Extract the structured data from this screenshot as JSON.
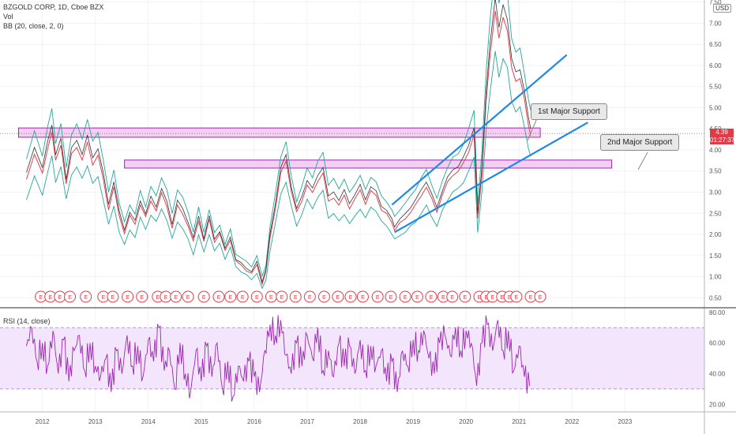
{
  "header": {
    "symbol_line": "BZGOLD CORP, 1D, Cboe BZX",
    "volume_label": "Vol",
    "bb_label": "BB (20, close, 2, 0)",
    "currency": "USD"
  },
  "price_readout": {
    "last_price": "4.39",
    "countdown": "01:27:37"
  },
  "annotations": {
    "support_1": "1st Major Support",
    "support_2": "2nd Major Support"
  },
  "earnings_marker_label": "E",
  "earnings_dates": [
    2011.97,
    2012.15,
    2012.33,
    2012.52,
    2012.82,
    2013.15,
    2013.33,
    2013.61,
    2013.88,
    2014.18,
    2014.33,
    2014.52,
    2014.75,
    2015.05,
    2015.33,
    2015.55,
    2015.78,
    2016.05,
    2016.32,
    2016.52,
    2016.78,
    2017.05,
    2017.32,
    2017.58,
    2017.82,
    2018.05,
    2018.33,
    2018.58,
    2018.85,
    2019.08,
    2019.34,
    2019.57,
    2019.74,
    2019.98,
    2020.25,
    2020.38,
    2020.5,
    2020.68,
    2020.82,
    2020.95,
    2021.22,
    2021.4
  ],
  "chart_data": [
    {
      "type": "line",
      "name": "price",
      "title": "",
      "x_ticks": [
        "2012",
        "2013",
        "2014",
        "2015",
        "2016",
        "2017",
        "2018",
        "2019",
        "2020",
        "2021",
        "2022",
        "2023"
      ],
      "y_ticks": [
        0.5,
        1.0,
        1.5,
        2.0,
        2.5,
        3.0,
        3.5,
        4.0,
        4.5,
        5.0,
        5.5,
        6.0,
        6.5,
        7.0,
        7.5
      ],
      "ylim": [
        0.3,
        7.55
      ],
      "xlim": [
        2011.2,
        2024.5
      ],
      "series": [
        {
          "values": [
            [
              2011.7,
              3.3
            ],
            [
              2011.85,
              3.9
            ],
            [
              2012.0,
              3.4
            ],
            [
              2012.1,
              4.0
            ],
            [
              2012.18,
              4.4
            ],
            [
              2012.25,
              3.7
            ],
            [
              2012.35,
              4.1
            ],
            [
              2012.45,
              3.2
            ],
            [
              2012.55,
              3.9
            ],
            [
              2012.65,
              4.1
            ],
            [
              2012.75,
              3.8
            ],
            [
              2012.85,
              4.2
            ],
            [
              2012.95,
              3.7
            ],
            [
              2013.05,
              3.9
            ],
            [
              2013.15,
              3.3
            ],
            [
              2013.25,
              2.6
            ],
            [
              2013.35,
              3.1
            ],
            [
              2013.45,
              2.4
            ],
            [
              2013.55,
              2.0
            ],
            [
              2013.65,
              2.4
            ],
            [
              2013.75,
              2.2
            ],
            [
              2013.85,
              2.7
            ],
            [
              2013.95,
              2.4
            ],
            [
              2014.05,
              2.8
            ],
            [
              2014.15,
              2.6
            ],
            [
              2014.25,
              3.0
            ],
            [
              2014.35,
              2.7
            ],
            [
              2014.45,
              2.2
            ],
            [
              2014.55,
              2.7
            ],
            [
              2014.65,
              2.5
            ],
            [
              2014.75,
              2.2
            ],
            [
              2014.85,
              1.8
            ],
            [
              2014.95,
              2.3
            ],
            [
              2015.05,
              1.8
            ],
            [
              2015.15,
              2.3
            ],
            [
              2015.25,
              1.8
            ],
            [
              2015.35,
              2.0
            ],
            [
              2015.45,
              1.6
            ],
            [
              2015.55,
              1.9
            ],
            [
              2015.65,
              1.4
            ],
            [
              2015.75,
              1.3
            ],
            [
              2015.85,
              1.2
            ],
            [
              2015.95,
              1.1
            ],
            [
              2016.05,
              1.3
            ],
            [
              2016.15,
              0.85
            ],
            [
              2016.22,
              1.1
            ],
            [
              2016.3,
              1.9
            ],
            [
              2016.4,
              2.6
            ],
            [
              2016.5,
              3.4
            ],
            [
              2016.6,
              3.7
            ],
            [
              2016.7,
              3.0
            ],
            [
              2016.8,
              2.5
            ],
            [
              2016.9,
              2.8
            ],
            [
              2017.0,
              3.2
            ],
            [
              2017.1,
              3.0
            ],
            [
              2017.2,
              3.3
            ],
            [
              2017.3,
              3.5
            ],
            [
              2017.4,
              2.8
            ],
            [
              2017.5,
              2.9
            ],
            [
              2017.6,
              2.7
            ],
            [
              2017.7,
              2.9
            ],
            [
              2017.8,
              2.6
            ],
            [
              2017.9,
              2.8
            ],
            [
              2018.0,
              3.0
            ],
            [
              2018.1,
              2.7
            ],
            [
              2018.2,
              3.0
            ],
            [
              2018.3,
              2.9
            ],
            [
              2018.4,
              2.6
            ],
            [
              2018.5,
              2.5
            ],
            [
              2018.6,
              2.3
            ],
            [
              2018.65,
              2.15
            ],
            [
              2018.75,
              2.3
            ],
            [
              2018.85,
              2.4
            ],
            [
              2018.95,
              2.55
            ],
            [
              2019.05,
              2.7
            ],
            [
              2019.15,
              2.9
            ],
            [
              2019.25,
              3.1
            ],
            [
              2019.35,
              2.8
            ],
            [
              2019.45,
              2.5
            ],
            [
              2019.55,
              2.9
            ],
            [
              2019.65,
              3.2
            ],
            [
              2019.75,
              3.4
            ],
            [
              2019.85,
              3.5
            ],
            [
              2019.95,
              3.7
            ],
            [
              2020.05,
              4.0
            ],
            [
              2020.15,
              4.4
            ],
            [
              2020.22,
              2.4
            ],
            [
              2020.3,
              3.5
            ],
            [
              2020.38,
              5.2
            ],
            [
              2020.45,
              6.2
            ],
            [
              2020.55,
              7.3
            ],
            [
              2020.62,
              6.6
            ],
            [
              2020.7,
              7.1
            ],
            [
              2020.78,
              6.8
            ],
            [
              2020.86,
              5.9
            ],
            [
              2020.94,
              5.6
            ],
            [
              2021.02,
              5.7
            ],
            [
              2021.1,
              5.2
            ],
            [
              2021.18,
              4.6
            ],
            [
              2021.22,
              4.39
            ]
          ]
        }
      ],
      "reference_boxes": [
        {
          "x0": 2011.55,
          "x1": 2021.4,
          "y0": 4.3,
          "y1": 4.52
        },
        {
          "x0": 2013.55,
          "x1": 2022.75,
          "y0": 3.57,
          "y1": 3.76
        }
      ],
      "trend_lines": [
        {
          "x0": 2018.65,
          "y0": 2.05,
          "x1": 2022.3,
          "y1": 4.65
        },
        {
          "x0": 2018.6,
          "y0": 2.7,
          "x1": 2021.9,
          "y1": 6.25
        }
      ]
    },
    {
      "type": "line",
      "name": "rsi",
      "title": "RSI (14, close)",
      "y_ticks": [
        20.0,
        40.0,
        60.0,
        80.0
      ],
      "ylim": [
        15,
        82
      ],
      "bands": [
        30,
        70
      ],
      "series": [
        {
          "values": [
            [
              2011.7,
              58
            ],
            [
              2011.8,
              70
            ],
            [
              2011.9,
              48
            ],
            [
              2012.0,
              60
            ],
            [
              2012.1,
              45
            ],
            [
              2012.2,
              68
            ],
            [
              2012.3,
              40
            ],
            [
              2012.4,
              62
            ],
            [
              2012.5,
              35
            ],
            [
              2012.6,
              55
            ],
            [
              2012.7,
              65
            ],
            [
              2012.8,
              42
            ],
            [
              2012.9,
              60
            ],
            [
              2013.0,
              45
            ],
            [
              2013.1,
              38
            ],
            [
              2013.2,
              50
            ],
            [
              2013.3,
              28
            ],
            [
              2013.4,
              55
            ],
            [
              2013.5,
              40
            ],
            [
              2013.6,
              65
            ],
            [
              2013.7,
              45
            ],
            [
              2013.8,
              58
            ],
            [
              2013.9,
              38
            ],
            [
              2014.0,
              62
            ],
            [
              2014.1,
              48
            ],
            [
              2014.2,
              70
            ],
            [
              2014.3,
              42
            ],
            [
              2014.4,
              55
            ],
            [
              2014.5,
              30
            ],
            [
              2014.6,
              60
            ],
            [
              2014.7,
              40
            ],
            [
              2014.8,
              28
            ],
            [
              2014.9,
              55
            ],
            [
              2015.0,
              35
            ],
            [
              2015.1,
              58
            ],
            [
              2015.2,
              38
            ],
            [
              2015.3,
              60
            ],
            [
              2015.4,
              30
            ],
            [
              2015.5,
              48
            ],
            [
              2015.6,
              25
            ],
            [
              2015.7,
              45
            ],
            [
              2015.8,
              35
            ],
            [
              2015.9,
              48
            ],
            [
              2016.0,
              38
            ],
            [
              2016.1,
              28
            ],
            [
              2016.2,
              55
            ],
            [
              2016.3,
              72
            ],
            [
              2016.4,
              65
            ],
            [
              2016.5,
              75
            ],
            [
              2016.6,
              52
            ],
            [
              2016.7,
              40
            ],
            [
              2016.8,
              60
            ],
            [
              2016.9,
              45
            ],
            [
              2017.0,
              65
            ],
            [
              2017.1,
              50
            ],
            [
              2017.2,
              70
            ],
            [
              2017.3,
              42
            ],
            [
              2017.4,
              55
            ],
            [
              2017.5,
              38
            ],
            [
              2017.6,
              60
            ],
            [
              2017.7,
              45
            ],
            [
              2017.8,
              58
            ],
            [
              2017.9,
              40
            ],
            [
              2018.0,
              62
            ],
            [
              2018.1,
              42
            ],
            [
              2018.2,
              58
            ],
            [
              2018.3,
              45
            ],
            [
              2018.4,
              55
            ],
            [
              2018.5,
              35
            ],
            [
              2018.6,
              48
            ],
            [
              2018.7,
              28
            ],
            [
              2018.8,
              55
            ],
            [
              2018.9,
              45
            ],
            [
              2019.0,
              62
            ],
            [
              2019.1,
              55
            ],
            [
              2019.2,
              68
            ],
            [
              2019.3,
              50
            ],
            [
              2019.4,
              40
            ],
            [
              2019.5,
              60
            ],
            [
              2019.6,
              65
            ],
            [
              2019.7,
              52
            ],
            [
              2019.8,
              70
            ],
            [
              2019.9,
              55
            ],
            [
              2020.0,
              68
            ],
            [
              2020.1,
              60
            ],
            [
              2020.2,
              32
            ],
            [
              2020.3,
              60
            ],
            [
              2020.4,
              72
            ],
            [
              2020.5,
              55
            ],
            [
              2020.6,
              75
            ],
            [
              2020.7,
              55
            ],
            [
              2020.8,
              68
            ],
            [
              2020.9,
              42
            ],
            [
              2021.0,
              58
            ],
            [
              2021.1,
              38
            ],
            [
              2021.2,
              32
            ]
          ]
        }
      ]
    }
  ]
}
